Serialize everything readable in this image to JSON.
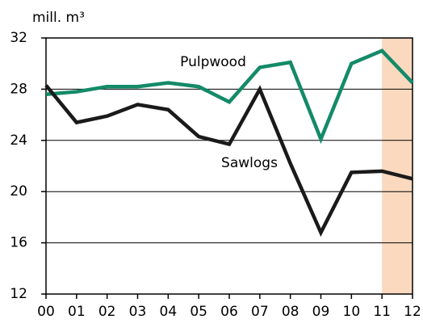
{
  "chart_data": {
    "type": "line",
    "y_axis_label": "mill. m³",
    "categories": [
      "00",
      "01",
      "02",
      "03",
      "04",
      "05",
      "06",
      "07",
      "08",
      "09",
      "10",
      "11",
      "12"
    ],
    "series": [
      {
        "name": "Pulpwood",
        "color": "#138a68",
        "values": [
          27.6,
          27.8,
          28.2,
          28.2,
          28.5,
          28.2,
          27.0,
          29.7,
          30.1,
          24.1,
          30.0,
          31.0,
          28.5
        ]
      },
      {
        "name": "Sawlogs",
        "color": "#1a1a1a",
        "values": [
          28.3,
          25.4,
          25.9,
          26.8,
          26.4,
          24.3,
          23.7,
          28.0,
          22.2,
          16.8,
          21.5,
          21.6,
          21.0
        ]
      }
    ],
    "ylim": [
      12,
      32
    ],
    "yticks": [
      12,
      16,
      20,
      24,
      28,
      32
    ],
    "grid": true,
    "highlight_range": [
      "11",
      "12"
    ],
    "highlight_color": "#fad9bf"
  }
}
